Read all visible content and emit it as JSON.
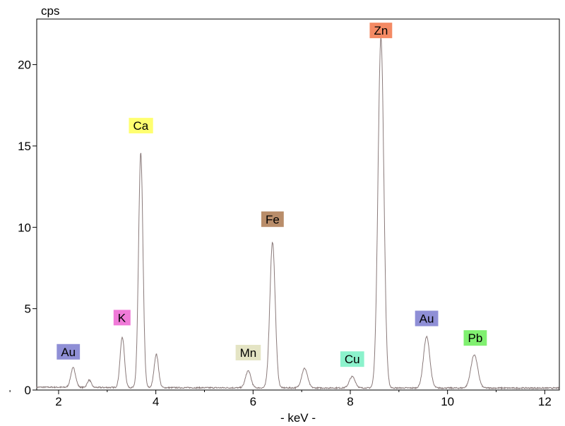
{
  "chart_data": {
    "type": "line",
    "xlabel": "- keV -",
    "ylabel": "cps",
    "xlim": [
      1.55,
      12.3
    ],
    "ylim": [
      0,
      22.8
    ],
    "x_ticks": [
      2,
      4,
      6,
      8,
      10,
      12
    ],
    "y_ticks": [
      0,
      5,
      10,
      15,
      20
    ],
    "grid": false,
    "line_color": "#8a7a7a",
    "baseline": 0.12,
    "peaks": [
      {
        "x": 2.3,
        "y": 1.2,
        "w": 0.05
      },
      {
        "x": 2.63,
        "y": 0.45,
        "w": 0.04
      },
      {
        "x": 3.31,
        "y": 3.1,
        "w": 0.045
      },
      {
        "x": 3.69,
        "y": 14.4,
        "w": 0.045
      },
      {
        "x": 4.01,
        "y": 2.05,
        "w": 0.045
      },
      {
        "x": 5.9,
        "y": 1.05,
        "w": 0.055
      },
      {
        "x": 6.4,
        "y": 8.95,
        "w": 0.055
      },
      {
        "x": 7.06,
        "y": 1.2,
        "w": 0.06
      },
      {
        "x": 8.04,
        "y": 0.7,
        "w": 0.06
      },
      {
        "x": 8.63,
        "y": 21.55,
        "w": 0.06
      },
      {
        "x": 9.57,
        "y": 3.15,
        "w": 0.065
      },
      {
        "x": 10.55,
        "y": 2.05,
        "w": 0.07
      }
    ],
    "peak_labels": [
      {
        "text": "Au",
        "x": 2.2,
        "y": 2.35,
        "color": "#8f8fd6"
      },
      {
        "text": "K",
        "x": 3.3,
        "y": 4.45,
        "color": "#f07ad8"
      },
      {
        "text": "Ca",
        "x": 3.69,
        "y": 16.25,
        "color": "#ffff70"
      },
      {
        "text": "Mn",
        "x": 5.9,
        "y": 2.3,
        "color": "#e4e4c4"
      },
      {
        "text": "Fe",
        "x": 6.4,
        "y": 10.5,
        "color": "#b98d6a"
      },
      {
        "text": "Cu",
        "x": 8.04,
        "y": 1.9,
        "color": "#8cf2cc"
      },
      {
        "text": "Zn",
        "x": 8.63,
        "y": 22.1,
        "color": "#f48a64"
      },
      {
        "text": "Au",
        "x": 9.57,
        "y": 4.4,
        "color": "#8f8fd6"
      },
      {
        "text": "Pb",
        "x": 10.57,
        "y": 3.2,
        "color": "#80f070"
      }
    ]
  }
}
